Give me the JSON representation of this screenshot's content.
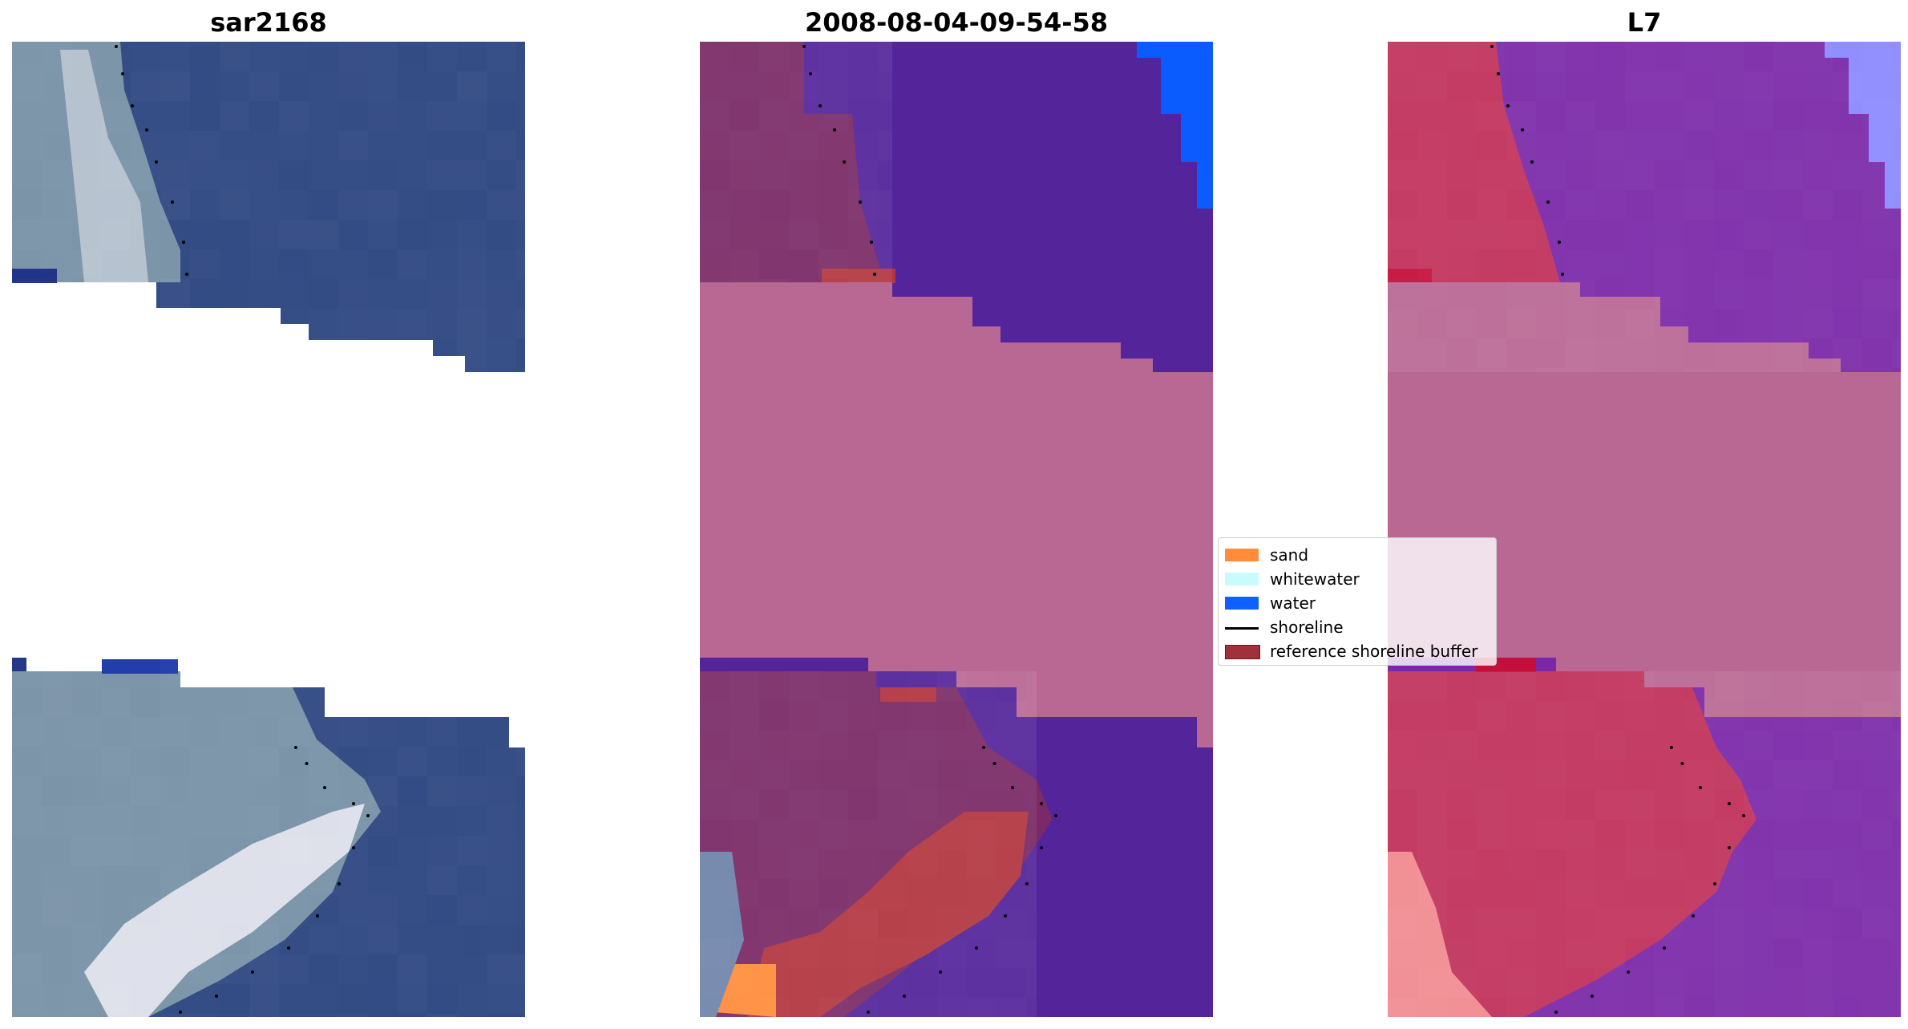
{
  "panels": [
    {
      "title": "sar2168"
    },
    {
      "title": "2008-08-04-09-54-58"
    },
    {
      "title": "L7"
    }
  ],
  "legend": {
    "items": [
      {
        "label": "sand",
        "color": "#ff8c3a",
        "kind": "patch"
      },
      {
        "label": "whitewater",
        "color": "#c8fbfb",
        "kind": "patch"
      },
      {
        "label": "water",
        "color": "#1060ff",
        "kind": "patch"
      },
      {
        "label": "shoreline",
        "color": "#000000",
        "kind": "line"
      },
      {
        "label": "reference shoreline buffer",
        "color": "#a0313a",
        "kind": "patch"
      }
    ]
  },
  "colors": {
    "rgb_water": "#1f3a78",
    "rgb_land": "#6f8aa0",
    "rgb_bright": "#e6e6f0",
    "class_water": "#53249a",
    "class_land": "#7a2a66",
    "class_nodata": "#b96894",
    "class_buffer": "#b23640",
    "class_sand": "#ff8c3a",
    "class_waterblue": "#0a5cff",
    "ndwi_water": "#7a28a8",
    "ndwi_land": "#c0305a",
    "ndwi_nodata": "#b96894",
    "ndwi_bright": "#f08a90",
    "ndwi_blue": "#8a88ff"
  }
}
